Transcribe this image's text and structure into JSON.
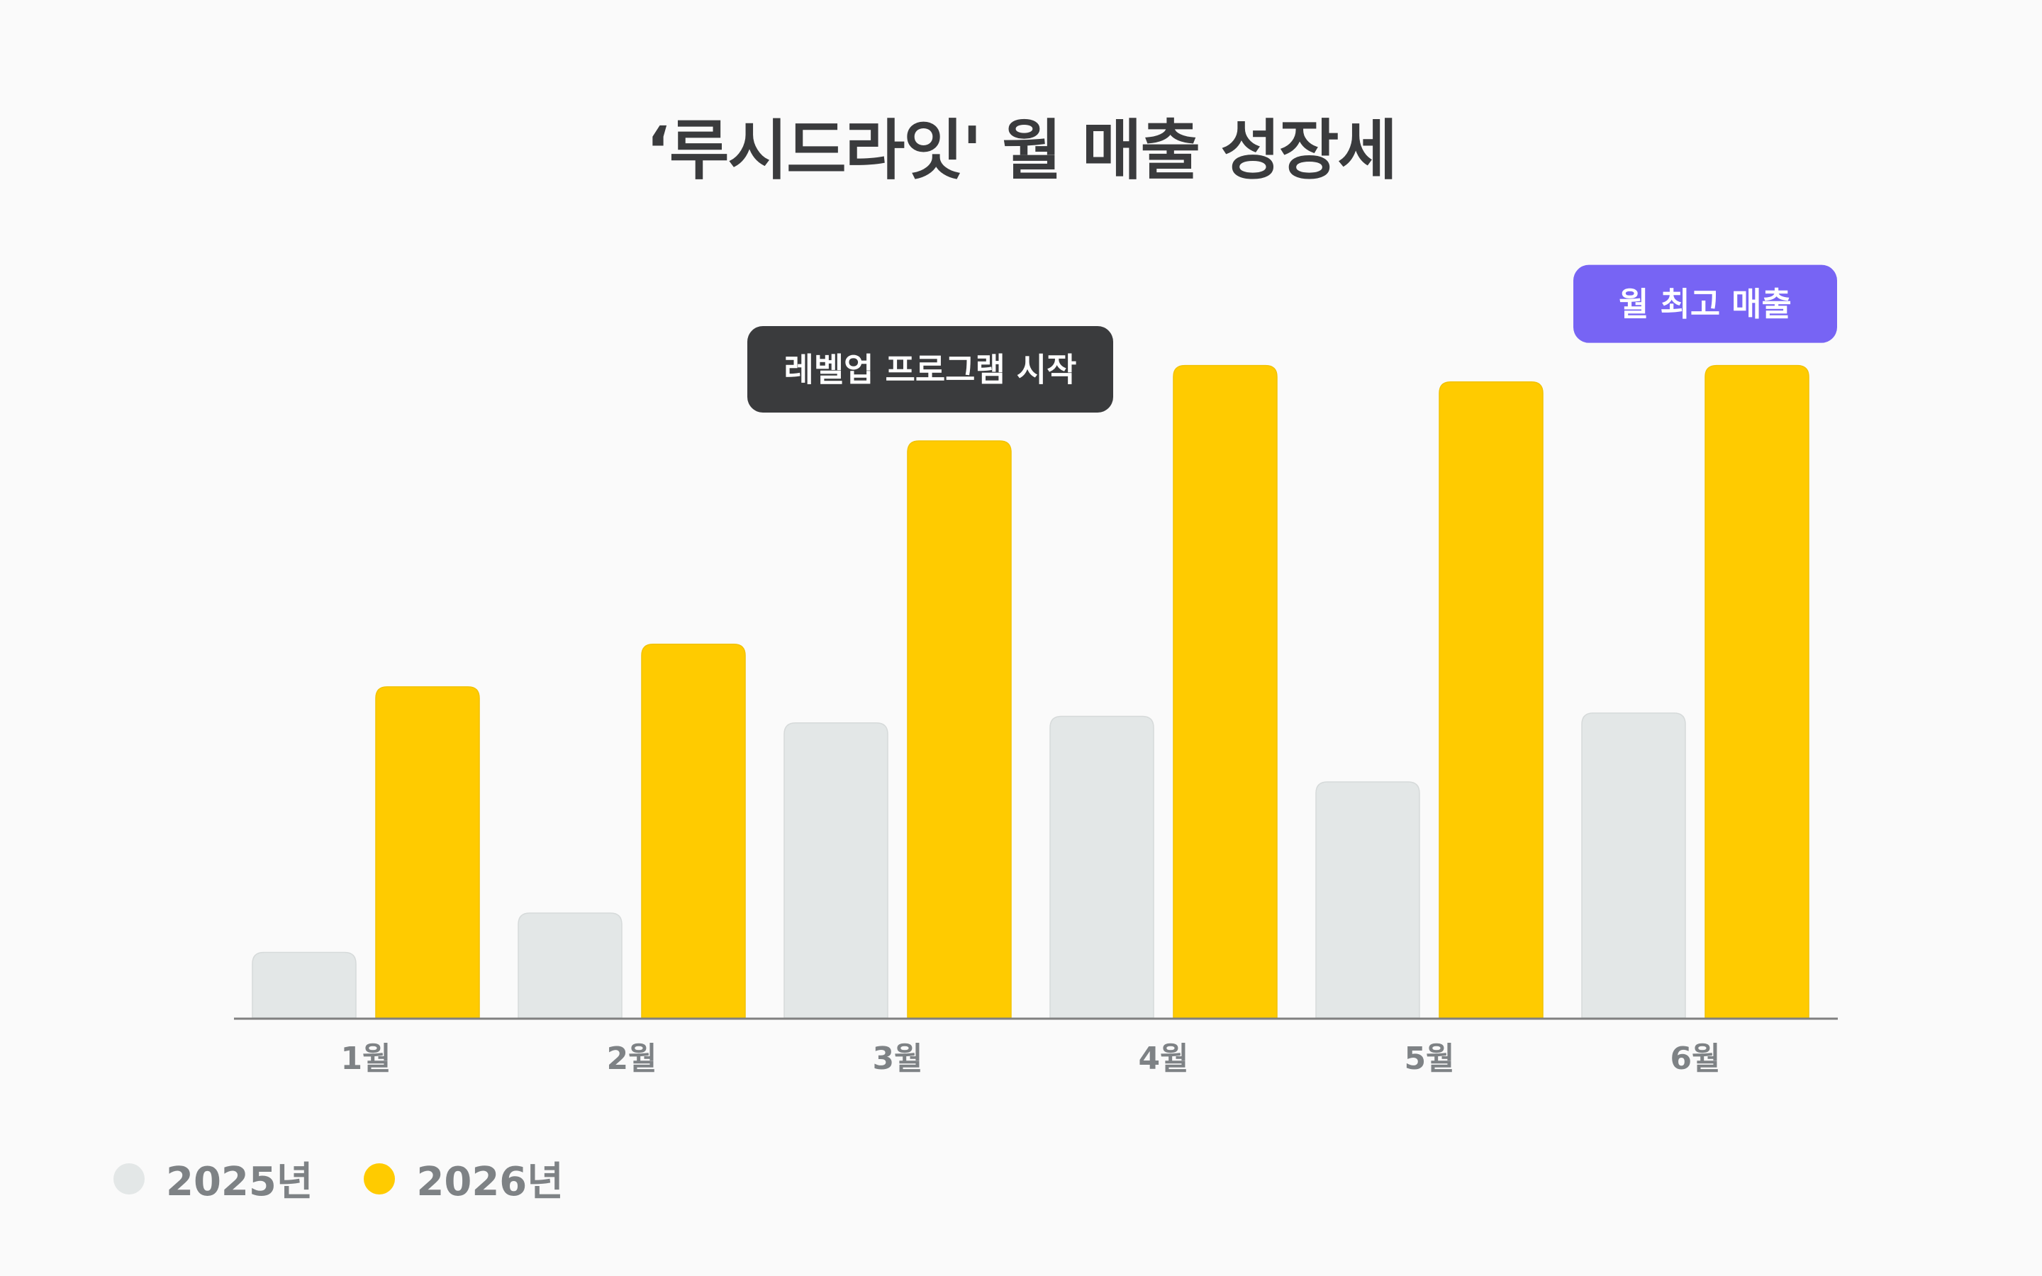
{
  "chart_data": {
    "type": "bar",
    "title": "‘루시드라잇' 월 매출 성장세",
    "categories": [
      "1월",
      "2월",
      "3월",
      "4월",
      "5월",
      "6월"
    ],
    "series": [
      {
        "name": "2025년",
        "values": [
          10,
          16,
          45,
          46,
          36,
          46.5
        ],
        "color": "#e3e7e7"
      },
      {
        "name": "2026년",
        "values": [
          50.5,
          57,
          88,
          99.5,
          97,
          99.5
        ],
        "color": "#ffcb00"
      }
    ],
    "ylim": [
      0,
      100
    ],
    "grid": false,
    "legend": "bottom-left",
    "annotations": [
      {
        "text": "레벨업 프로그램 시작",
        "category_index": 2,
        "series_index": 1,
        "style": "dark",
        "color": "#3a3b3d"
      },
      {
        "text": "월 최고 매출",
        "category_index": 5,
        "series_index": 1,
        "style": "accent",
        "color": "#7764f4"
      }
    ],
    "axis_color": "#808080",
    "tick_color": "#7e8285"
  }
}
